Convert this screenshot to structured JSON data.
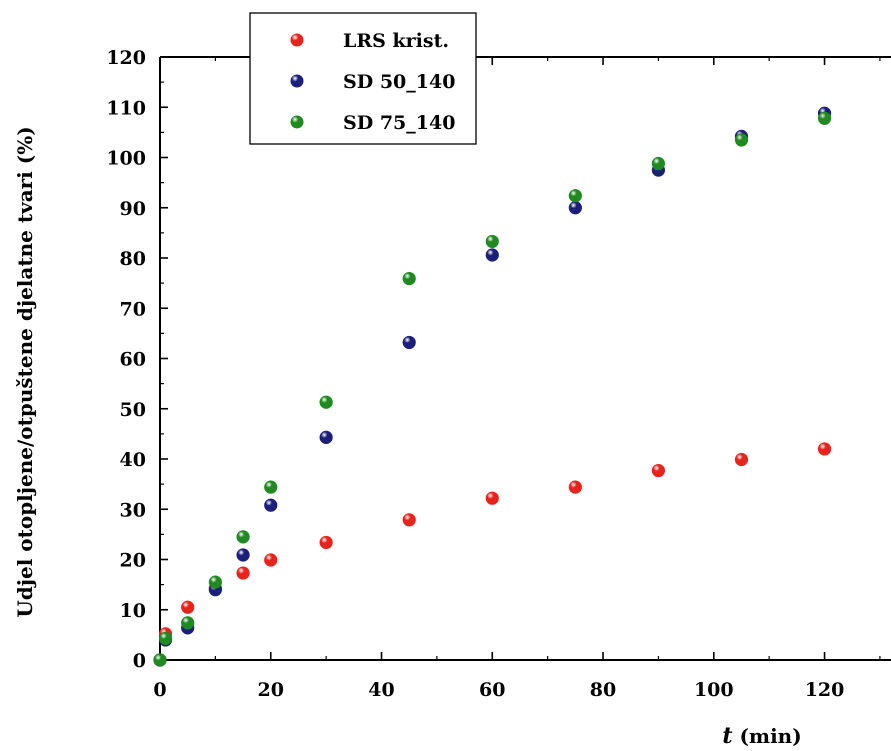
{
  "chart_data": {
    "type": "scatter",
    "xlabel_var": "t",
    "xlabel_unit": " (min)",
    "ylabel": "Udjel otopljene/otpuštene djelatne tvari (%)",
    "xlim": [
      0,
      132
    ],
    "ylim": [
      0,
      120
    ],
    "x_ticks": [
      0,
      20,
      40,
      60,
      80,
      100,
      120
    ],
    "y_ticks": [
      0,
      10,
      20,
      30,
      40,
      50,
      60,
      70,
      80,
      90,
      100,
      110,
      120
    ],
    "legend_position": "top-left",
    "grid": false,
    "series": [
      {
        "name": "LRS krist.",
        "color": "#e8231b",
        "x": [
          0,
          1,
          5,
          10,
          15,
          20,
          30,
          45,
          60,
          75,
          90,
          105,
          120
        ],
        "y": [
          0,
          5.2,
          10.5,
          14.3,
          17.3,
          19.9,
          23.4,
          27.9,
          32.2,
          34.4,
          37.7,
          39.9,
          42.0
        ]
      },
      {
        "name": "SD 50_140",
        "color": "#1a1f7a",
        "x": [
          0,
          1,
          5,
          10,
          15,
          20,
          30,
          45,
          60,
          75,
          90,
          105,
          120
        ],
        "y": [
          0,
          4.0,
          6.4,
          14.0,
          20.9,
          30.8,
          44.3,
          63.2,
          80.6,
          90.0,
          97.5,
          104.2,
          108.8
        ]
      },
      {
        "name": "SD 75_140",
        "color": "#1f8a1f",
        "x": [
          0,
          1,
          5,
          10,
          15,
          20,
          30,
          45,
          60,
          75,
          90,
          105,
          120
        ],
        "y": [
          0,
          4.3,
          7.4,
          15.5,
          24.5,
          34.4,
          51.3,
          75.9,
          83.3,
          92.4,
          98.8,
          103.5,
          107.8
        ]
      }
    ]
  }
}
